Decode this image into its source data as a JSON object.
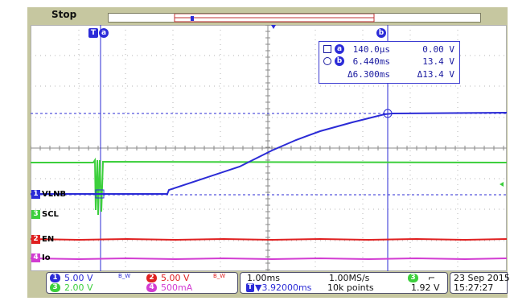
{
  "status": "Stop",
  "cursor_a_label": "a",
  "cursor_b_label": "b",
  "trigger_marker": "T",
  "readout": {
    "a": {
      "time": "140.0µs",
      "value": "0.00 V"
    },
    "b": {
      "time": "6.440ms",
      "value": "13.4 V"
    },
    "delta": {
      "time": "Δ6.300ms",
      "value": "Δ13.4 V"
    }
  },
  "channels": [
    {
      "num": "1",
      "name": "VLNB",
      "color": "#2b2bd6"
    },
    {
      "num": "3",
      "name": "SCL",
      "color": "#3ccf3c"
    },
    {
      "num": "2",
      "name": "EN",
      "color": "#e02020"
    },
    {
      "num": "4",
      "name": "Io",
      "color": "#d23cd2"
    }
  ],
  "scale": {
    "ch1": "5.00 V",
    "ch2": "5.00 V",
    "ch3": "2.00 V",
    "ch4": "500mA",
    "bw_mark": "B_W"
  },
  "timebase": {
    "per_div": "1.00ms",
    "sample_rate": "1.00MS/s",
    "position": "▼3.92000ms",
    "record": "10k points"
  },
  "trigger": {
    "channel": "3",
    "slope": "⌐",
    "level": "1.92 V"
  },
  "datetime": {
    "date": "23 Sep  2015",
    "time": "15:27:27"
  }
}
